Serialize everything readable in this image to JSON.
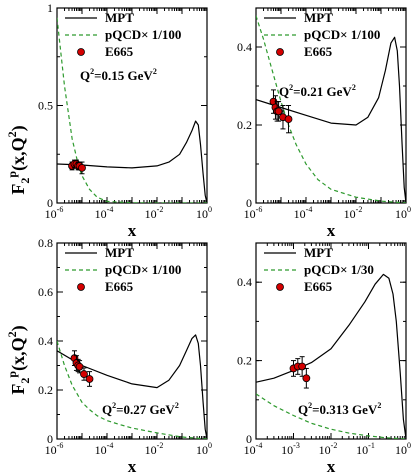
{
  "ylabel": "F",
  "ylabel_sub": "2",
  "ylabel_sup": "p",
  "ylabel_rest": "(x,Q",
  "ylabel_sup2": "2",
  "ylabel_end": ")",
  "chart_data": [
    {
      "type": "line",
      "xlabel": "x",
      "xscale": "log",
      "xlim": [
        1e-06,
        1
      ],
      "ylim": [
        0,
        1
      ],
      "xtick_exps": [
        "-6",
        "-4",
        "-2",
        "0"
      ],
      "yticks": [
        "0",
        "0.5",
        "1"
      ],
      "q2_label": "Q",
      "q2_value": "=0.15 GeV",
      "legend": [
        "MPT",
        "pQCD× 1/100",
        "E665"
      ],
      "series": [
        {
          "name": "MPT",
          "style": "solid",
          "color": "#000000",
          "x": [
            1e-06,
            1e-05,
            0.0001,
            0.001,
            0.01,
            0.03,
            0.08,
            0.15,
            0.25,
            0.35,
            0.45,
            0.55,
            0.7,
            0.85,
            1.0
          ],
          "y": [
            0.2,
            0.195,
            0.185,
            0.18,
            0.19,
            0.21,
            0.25,
            0.31,
            0.37,
            0.42,
            0.4,
            0.3,
            0.15,
            0.04,
            0.0
          ]
        },
        {
          "name": "pQCD× 1/100",
          "style": "dashed",
          "color": "#2e9a2e",
          "x": [
            1e-06,
            2e-06,
            4e-06,
            7e-06,
            1e-05,
            2e-05,
            4e-05,
            0.0001,
            0.001,
            0.01,
            0.1,
            1
          ],
          "y": [
            0.95,
            0.6,
            0.33,
            0.2,
            0.14,
            0.07,
            0.03,
            0.008,
            0.001,
            0.0,
            0.0,
            0.0
          ]
        },
        {
          "name": "E665",
          "style": "points",
          "color": "#d40000",
          "x": [
            4e-06,
            5e-06,
            6e-06,
            7e-06,
            8e-06,
            1e-05
          ],
          "y": [
            0.19,
            0.2,
            0.2,
            0.19,
            0.19,
            0.18
          ],
          "err": [
            0.02,
            0.02,
            0.02,
            0.02,
            0.02,
            0.03
          ]
        }
      ]
    },
    {
      "type": "line",
      "xlabel": "x",
      "xscale": "log",
      "xlim": [
        1e-06,
        1
      ],
      "ylim": [
        0,
        0.5
      ],
      "xtick_exps": [
        "-6",
        "-4",
        "-2",
        "0"
      ],
      "yticks": [
        "0",
        "0.2",
        "0.4"
      ],
      "q2_label": "Q",
      "q2_value": "=0.21 GeV",
      "legend": [
        "MPT",
        "pQCD× 1/100",
        "E665"
      ],
      "series": [
        {
          "name": "MPT",
          "style": "solid",
          "color": "#000000",
          "x": [
            1e-06,
            1e-05,
            0.0001,
            0.001,
            0.01,
            0.03,
            0.08,
            0.15,
            0.25,
            0.35,
            0.45,
            0.55,
            0.7,
            0.85,
            1.0
          ],
          "y": [
            0.265,
            0.245,
            0.225,
            0.205,
            0.2,
            0.22,
            0.27,
            0.34,
            0.41,
            0.425,
            0.39,
            0.3,
            0.15,
            0.04,
            0.0
          ]
        },
        {
          "name": "pQCD× 1/100",
          "style": "dashed",
          "color": "#2e9a2e",
          "x": [
            1e-06,
            2e-06,
            4e-06,
            1e-05,
            2e-05,
            4e-05,
            0.0001,
            0.0003,
            0.001,
            0.01,
            0.1,
            1
          ],
          "y": [
            0.48,
            0.42,
            0.35,
            0.26,
            0.2,
            0.15,
            0.1,
            0.06,
            0.035,
            0.015,
            0.005,
            0.0
          ]
        },
        {
          "name": "E665",
          "style": "points",
          "color": "#d40000",
          "x": [
            5e-06,
            6e-06,
            7e-06,
            8e-06,
            1.2e-05,
            2e-05
          ],
          "y": [
            0.26,
            0.245,
            0.235,
            0.235,
            0.22,
            0.215
          ],
          "err": [
            0.03,
            0.03,
            0.025,
            0.025,
            0.03,
            0.035
          ]
        }
      ]
    },
    {
      "type": "line",
      "xlabel": "x",
      "xscale": "log",
      "xlim": [
        1e-06,
        1
      ],
      "ylim": [
        0,
        0.8
      ],
      "xtick_exps": [
        "-6",
        "-4",
        "-2",
        "0"
      ],
      "yticks": [
        "0",
        "0.2",
        "0.4",
        "0.6",
        "0.8"
      ],
      "q2_label": "Q",
      "q2_value": "=0.27 GeV",
      "legend": [
        "MPT",
        "pQCD× 1/100",
        "E665"
      ],
      "series": [
        {
          "name": "MPT",
          "style": "solid",
          "color": "#000000",
          "x": [
            1e-06,
            1e-05,
            0.0001,
            0.001,
            0.01,
            0.03,
            0.08,
            0.15,
            0.25,
            0.35,
            0.45,
            0.55,
            0.7,
            0.85,
            1.0
          ],
          "y": [
            0.36,
            0.3,
            0.26,
            0.225,
            0.21,
            0.24,
            0.3,
            0.36,
            0.41,
            0.425,
            0.39,
            0.3,
            0.15,
            0.04,
            0.0
          ]
        },
        {
          "name": "pQCD× 1/100",
          "style": "dashed",
          "color": "#2e9a2e",
          "x": [
            1e-06,
            2e-06,
            4e-06,
            1e-05,
            2e-05,
            4e-05,
            0.0001,
            0.0003,
            0.001,
            0.01,
            0.1,
            1
          ],
          "y": [
            0.4,
            0.3,
            0.22,
            0.15,
            0.12,
            0.095,
            0.075,
            0.06,
            0.045,
            0.025,
            0.008,
            0.0
          ]
        },
        {
          "name": "E665",
          "style": "points",
          "color": "#d40000",
          "x": [
            5e-06,
            6e-06,
            7e-06,
            8e-06,
            1.2e-05,
            2e-05
          ],
          "y": [
            0.33,
            0.31,
            0.3,
            0.295,
            0.265,
            0.245
          ],
          "err": [
            0.03,
            0.03,
            0.025,
            0.025,
            0.025,
            0.03
          ]
        }
      ]
    },
    {
      "type": "line",
      "xlabel": "x",
      "xscale": "log",
      "xlim": [
        0.0001,
        1
      ],
      "ylim": [
        0,
        0.5
      ],
      "xtick_exps": [
        "-4",
        "-3",
        "-2",
        "-1",
        "0"
      ],
      "yticks": [
        "0",
        "0.2",
        "0.4"
      ],
      "q2_label": "Q",
      "q2_value": "=0.313 GeV",
      "legend": [
        "MPT",
        "pQCD× 1/30",
        "E665"
      ],
      "series": [
        {
          "name": "MPT",
          "style": "solid",
          "color": "#000000",
          "x": [
            0.0001,
            0.0003,
            0.001,
            0.003,
            0.01,
            0.03,
            0.08,
            0.15,
            0.25,
            0.35,
            0.45,
            0.55,
            0.7,
            0.85,
            1.0
          ],
          "y": [
            0.145,
            0.155,
            0.175,
            0.195,
            0.23,
            0.29,
            0.35,
            0.395,
            0.42,
            0.41,
            0.37,
            0.3,
            0.17,
            0.05,
            0.0
          ]
        },
        {
          "name": "pQCD× 1/30",
          "style": "dashed",
          "color": "#2e9a2e",
          "x": [
            0.0001,
            0.0003,
            0.001,
            0.003,
            0.01,
            0.03,
            0.1,
            0.3,
            1
          ],
          "y": [
            0.115,
            0.085,
            0.06,
            0.04,
            0.025,
            0.015,
            0.008,
            0.003,
            0.0
          ]
        },
        {
          "name": "E665",
          "style": "points",
          "color": "#d40000",
          "x": [
            0.001,
            0.0013,
            0.0017,
            0.0022
          ],
          "y": [
            0.18,
            0.185,
            0.185,
            0.155
          ],
          "err": [
            0.02,
            0.02,
            0.025,
            0.025
          ]
        }
      ]
    }
  ]
}
